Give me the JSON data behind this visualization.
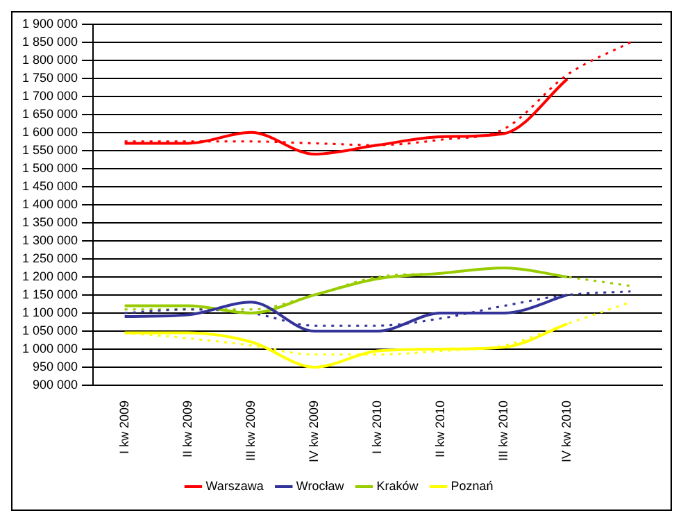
{
  "chart_data": {
    "type": "line",
    "categories": [
      "I kw 2009",
      "II kw 2009",
      "III kw 2009",
      "IV kw 2009",
      "I kw 2010",
      "II kw 2010",
      "III kw 2010",
      "IV kw 2010",
      null
    ],
    "series": [
      {
        "name": "Warszawa",
        "color": "#ff0000",
        "values": [
          1570000,
          1570000,
          1600000,
          1540000,
          1565000,
          1588000,
          1597000,
          1748000,
          null
        ]
      },
      {
        "name": "Wrocław",
        "color": "#333399",
        "values": [
          1090000,
          1095000,
          1130000,
          1050000,
          1050000,
          1100000,
          1100000,
          1150000,
          null
        ]
      },
      {
        "name": "Kraków",
        "color": "#99cc00",
        "values": [
          1120000,
          1120000,
          1100000,
          1150000,
          1195000,
          1210000,
          1225000,
          1200000,
          null
        ]
      },
      {
        "name": "Poznań",
        "color": "#ffff00",
        "values": [
          1045000,
          1045000,
          1020000,
          950000,
          995000,
          1000000,
          1005000,
          1070000,
          null
        ]
      },
      {
        "color": "#ff0000",
        "line_style": "dotted",
        "values": [
          1575000,
          1575000,
          1575000,
          1570000,
          1565000,
          1580000,
          1610000,
          1760000,
          1850000
        ]
      },
      {
        "color": "#333399",
        "line_style": "dotted",
        "values": [
          1100000,
          1110000,
          1100000,
          1065000,
          1065000,
          1085000,
          1120000,
          1150000,
          1160000
        ]
      },
      {
        "color": "#99cc00",
        "line_style": "dotted",
        "values": [
          1110000,
          1110000,
          1110000,
          1150000,
          1200000,
          1210000,
          1225000,
          1200000,
          1175000
        ]
      },
      {
        "color": "#ffff00",
        "line_style": "dotted",
        "values": [
          1045000,
          1030000,
          1010000,
          985000,
          985000,
          995000,
          1010000,
          1070000,
          1130000
        ]
      }
    ],
    "ylim": [
      900000,
      1900000
    ],
    "yticks": [
      {
        "value": 900000,
        "label": "900 000"
      },
      {
        "value": 950000,
        "label": "950 000"
      },
      {
        "value": 1000000,
        "label": "1 000 000"
      },
      {
        "value": 1050000,
        "label": "1 050 000"
      },
      {
        "value": 1100000,
        "label": "1 100 000"
      },
      {
        "value": 1150000,
        "label": "1 150 000"
      },
      {
        "value": 1200000,
        "label": "1 200 000"
      },
      {
        "value": 1250000,
        "label": "1 250 000"
      },
      {
        "value": 1300000,
        "label": "1 300 000"
      },
      {
        "value": 1350000,
        "label": "1 350 000"
      },
      {
        "value": 1400000,
        "label": "1 400 000"
      },
      {
        "value": 1450000,
        "label": "1 450 000"
      },
      {
        "value": 1500000,
        "label": "1 500 000"
      },
      {
        "value": 1550000,
        "label": "1 550 000"
      },
      {
        "value": 1600000,
        "label": "1 600 000"
      },
      {
        "value": 1650000,
        "label": "1 650 000"
      },
      {
        "value": 1700000,
        "label": "1 700 000"
      },
      {
        "value": 1750000,
        "label": "1 750 000"
      },
      {
        "value": 1800000,
        "label": "1 800 000"
      },
      {
        "value": 1850000,
        "label": "1 850 000"
      },
      {
        "value": 1900000,
        "label": "1 900 000"
      }
    ],
    "grid": "y",
    "legend": "bottom",
    "marker": "none",
    "line_style": "solid"
  }
}
